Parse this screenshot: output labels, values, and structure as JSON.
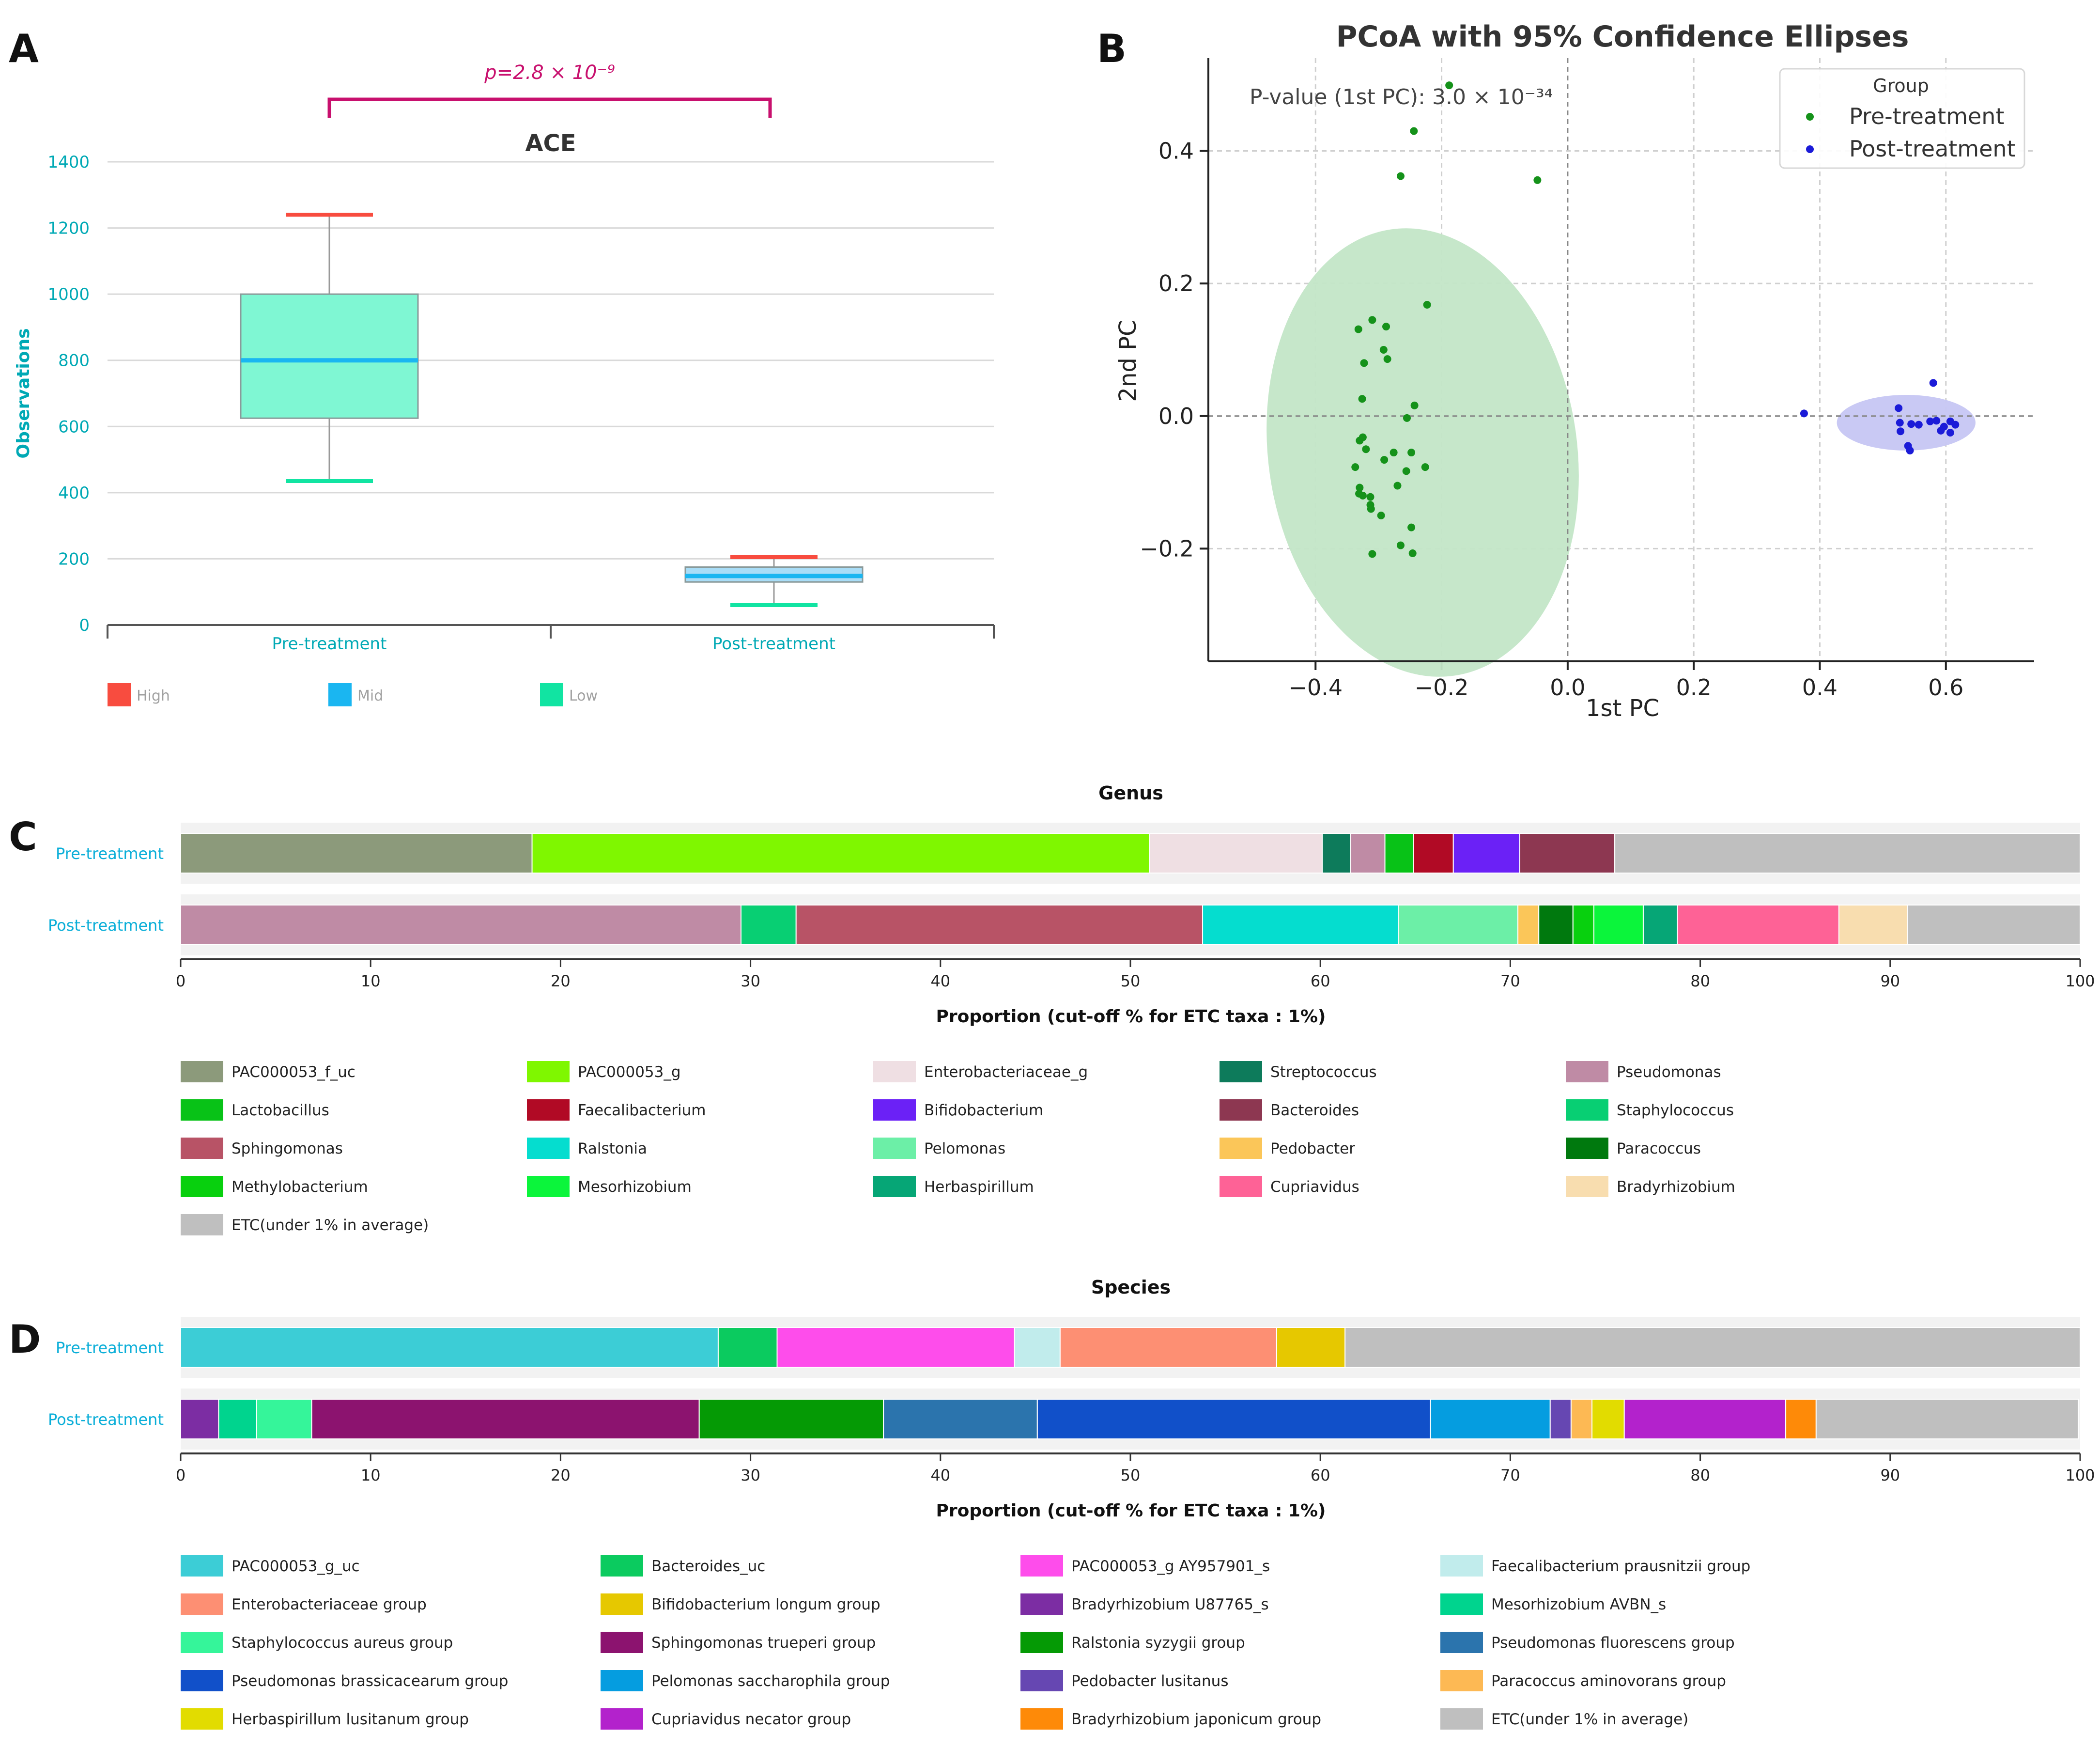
{
  "panel_labels": {
    "a": "A",
    "b": "B",
    "c": "C",
    "d": "D"
  },
  "chart_data": [
    {
      "id": "ace",
      "type": "box",
      "title": "ACE",
      "ylabel": "Observations",
      "ylim": [
        0,
        1400
      ],
      "yticks": [
        0,
        200,
        400,
        600,
        800,
        1000,
        1200,
        1400
      ],
      "categories": [
        "Pre-treatment",
        "Post-treatment"
      ],
      "boxes": [
        {
          "name": "Pre-treatment",
          "low": 435,
          "q1": 625,
          "median": 800,
          "q3": 1000,
          "high": 1240
        },
        {
          "name": "Post-treatment",
          "low": 60,
          "q1": 130,
          "median": 148,
          "q3": 175,
          "high": 205
        }
      ],
      "pvalue_text": "p=2.8 × 10⁻⁹",
      "legend": [
        {
          "label": "High",
          "color": "#f84c3f"
        },
        {
          "label": "Mid",
          "color": "#1ab6f1"
        },
        {
          "label": "Low",
          "color": "#11e4a2"
        }
      ],
      "colors": {
        "box_fill_pre": "#7ff7d3",
        "box_fill_post": "#a9ddf7",
        "axis_text": "#00a9b5",
        "bracket": "#c8106e"
      }
    },
    {
      "id": "pcoa",
      "type": "scatter",
      "title": "PCoA with 95% Confidence Ellipses",
      "xlabel": "1st PC",
      "ylabel": "2nd PC",
      "xlim": [
        -0.57,
        0.74
      ],
      "ylim": [
        -0.37,
        0.54
      ],
      "xticks": [
        -0.4,
        -0.2,
        0.0,
        0.2,
        0.4,
        0.6
      ],
      "xtick_labels": [
        "−0.4",
        "−0.2",
        "0.0",
        "0.2",
        "0.4",
        "0.6"
      ],
      "yticks": [
        -0.2,
        0.0,
        0.2,
        0.4
      ],
      "ytick_labels": [
        "−0.2",
        "0.0",
        "0.2",
        "0.4"
      ],
      "annotation": "P-value (1st PC): 3.0 × 10⁻³⁴",
      "legend_title": "Group",
      "series": [
        {
          "name": "Pre-treatment",
          "color": "#15921a",
          "ellipse_color": "#c3e6c7",
          "ellipse": {
            "cx": -0.23,
            "cy": -0.055,
            "rx": 0.245,
            "ry": 0.34,
            "angle_deg": 8
          },
          "points": [
            [
              -0.188,
              0.499
            ],
            [
              -0.244,
              0.43
            ],
            [
              -0.265,
              0.362
            ],
            [
              -0.048,
              0.356
            ],
            [
              -0.223,
              0.168
            ],
            [
              -0.31,
              0.145
            ],
            [
              -0.332,
              0.131
            ],
            [
              -0.288,
              0.135
            ],
            [
              -0.292,
              0.1
            ],
            [
              -0.286,
              0.086
            ],
            [
              -0.323,
              0.08
            ],
            [
              -0.326,
              0.026
            ],
            [
              -0.243,
              0.016
            ],
            [
              -0.255,
              -0.003
            ],
            [
              -0.325,
              -0.032
            ],
            [
              -0.33,
              -0.037
            ],
            [
              -0.32,
              -0.05
            ],
            [
              -0.276,
              -0.055
            ],
            [
              -0.248,
              -0.055
            ],
            [
              -0.291,
              -0.066
            ],
            [
              -0.337,
              -0.077
            ],
            [
              -0.226,
              -0.077
            ],
            [
              -0.256,
              -0.083
            ],
            [
              -0.27,
              -0.105
            ],
            [
              -0.33,
              -0.108
            ],
            [
              -0.325,
              -0.12
            ],
            [
              -0.331,
              -0.117
            ],
            [
              -0.313,
              -0.122
            ],
            [
              -0.313,
              -0.134
            ],
            [
              -0.312,
              -0.14
            ],
            [
              -0.296,
              -0.15
            ],
            [
              -0.248,
              -0.168
            ],
            [
              -0.265,
              -0.195
            ],
            [
              -0.31,
              -0.208
            ],
            [
              -0.246,
              -0.207
            ]
          ]
        },
        {
          "name": "Post-treatment",
          "color": "#1b1bd8",
          "ellipse_color": "#c6c6f3",
          "ellipse": {
            "cx": 0.537,
            "cy": -0.01,
            "rx": 0.11,
            "ry": 0.042,
            "angle_deg": 0
          },
          "points": [
            [
              0.375,
              0.004
            ],
            [
              0.58,
              0.05
            ],
            [
              0.525,
              0.012
            ],
            [
              0.545,
              -0.012
            ],
            [
              0.557,
              -0.013
            ],
            [
              0.575,
              -0.008
            ],
            [
              0.585,
              -0.007
            ],
            [
              0.597,
              -0.016
            ],
            [
              0.607,
              -0.008
            ],
            [
              0.615,
              -0.013
            ],
            [
              0.607,
              -0.025
            ],
            [
              0.592,
              -0.022
            ],
            [
              0.527,
              -0.01
            ],
            [
              0.528,
              -0.023
            ],
            [
              0.54,
              -0.045
            ],
            [
              0.543,
              -0.052
            ]
          ]
        }
      ]
    },
    {
      "id": "genus",
      "type": "stacked_bar_horizontal",
      "title": "Genus",
      "xlabel": "Proportion (cut-off % for ETC taxa : 1%)",
      "xlim": [
        0,
        100
      ],
      "xticks": [
        0,
        10,
        20,
        30,
        40,
        50,
        60,
        70,
        80,
        90,
        100
      ],
      "categories": [
        "Pre-treatment",
        "Post-treatment"
      ],
      "series": [
        {
          "name": "PAC000053_f_uc",
          "color": "#8c9a7b",
          "values": [
            18.5,
            0
          ]
        },
        {
          "name": "PAC000053_g",
          "color": "#7ff700",
          "values": [
            32.5,
            0
          ]
        },
        {
          "name": "Enterobacteriaceae_g",
          "color": "#efdfe3",
          "values": [
            9.1,
            0
          ]
        },
        {
          "name": "Streptococcus",
          "color": "#0d7b5b",
          "values": [
            1.5,
            0
          ]
        },
        {
          "name": "Pseudomonas",
          "color": "#bf8ba5",
          "values": [
            1.8,
            0
          ]
        },
        {
          "name": "Lactobacillus",
          "color": "#08c217",
          "values": [
            1.5,
            0
          ]
        },
        {
          "name": "Faecalibacterium",
          "color": "#b10a25",
          "values": [
            2.1,
            0
          ]
        },
        {
          "name": "Bifidobacterium",
          "color": "#6b21f6",
          "values": [
            3.5,
            0
          ]
        },
        {
          "name": "Bacteroides",
          "color": "#8d3751",
          "values": [
            5.0,
            0
          ]
        },
        {
          "name": "ETC(under 1% in average)",
          "color": "#bfbfbf",
          "values": [
            24.5,
            0
          ]
        }
      ],
      "series_post": [
        {
          "name": "Pseudomonas",
          "color": "#bf8ba5",
          "value": 29.5
        },
        {
          "name": "Staphylococcus",
          "color": "#08cf73",
          "value": 2.9
        },
        {
          "name": "Sphingomonas",
          "color": "#b85366",
          "value": 21.4
        },
        {
          "name": "Ralstonia",
          "color": "#05ddcf",
          "value": 10.3
        },
        {
          "name": "Pelomonas",
          "color": "#6cefa7",
          "value": 6.3
        },
        {
          "name": "Pedobacter",
          "color": "#fbc659",
          "value": 1.1
        },
        {
          "name": "Paracoccus",
          "color": "#00790e",
          "value": 1.8
        },
        {
          "name": "Methylobacterium",
          "color": "#08d00e",
          "value": 1.1
        },
        {
          "name": "Mesorhizobium",
          "color": "#0bf53b",
          "value": 2.6
        },
        {
          "name": "Herbaspirillum",
          "color": "#06a676",
          "value": 1.8
        },
        {
          "name": "Cupriavidus",
          "color": "#fe6296",
          "value": 8.5
        },
        {
          "name": "Bradyrhizobium",
          "color": "#f8ddaf",
          "value": 3.6
        },
        {
          "name": "ETC(under 1% in average)",
          "color": "#bfbfbf",
          "value": 9.1
        }
      ],
      "legend": [
        {
          "label": "PAC000053_f_uc",
          "color": "#8c9a7b"
        },
        {
          "label": "PAC000053_g",
          "color": "#7ff700"
        },
        {
          "label": "Enterobacteriaceae_g",
          "color": "#efdfe3"
        },
        {
          "label": "Streptococcus",
          "color": "#0d7b5b"
        },
        {
          "label": "Pseudomonas",
          "color": "#bf8ba5"
        },
        {
          "label": "Lactobacillus",
          "color": "#08c217"
        },
        {
          "label": "Faecalibacterium",
          "color": "#b10a25"
        },
        {
          "label": "Bifidobacterium",
          "color": "#6b21f6"
        },
        {
          "label": "Bacteroides",
          "color": "#8d3751"
        },
        {
          "label": "Staphylococcus",
          "color": "#08cf73"
        },
        {
          "label": "Sphingomonas",
          "color": "#b85366"
        },
        {
          "label": "Ralstonia",
          "color": "#05ddcf"
        },
        {
          "label": "Pelomonas",
          "color": "#6cefa7"
        },
        {
          "label": "Pedobacter",
          "color": "#fbc659"
        },
        {
          "label": "Paracoccus",
          "color": "#00790e"
        },
        {
          "label": "Methylobacterium",
          "color": "#08d00e"
        },
        {
          "label": "Mesorhizobium",
          "color": "#0bf53b"
        },
        {
          "label": "Herbaspirillum",
          "color": "#06a676"
        },
        {
          "label": "Cupriavidus",
          "color": "#fe6296"
        },
        {
          "label": "Bradyrhizobium",
          "color": "#f8ddaf"
        },
        {
          "label": "ETC(under 1% in average)",
          "color": "#bfbfbf"
        }
      ]
    },
    {
      "id": "species",
      "type": "stacked_bar_horizontal",
      "title": "Species",
      "xlabel": "Proportion (cut-off % for ETC taxa : 1%)",
      "xlim": [
        0,
        100
      ],
      "xticks": [
        0,
        10,
        20,
        30,
        40,
        50,
        60,
        70,
        80,
        90,
        100
      ],
      "categories": [
        "Pre-treatment",
        "Post-treatment"
      ],
      "series_pre": [
        {
          "name": "PAC000053_g_uc",
          "color": "#3ccdd6",
          "value": 28.3
        },
        {
          "name": "Bacteroides_uc",
          "color": "#0bcb5f",
          "value": 3.1
        },
        {
          "name": "PAC000053_g AY957901_s",
          "color": "#fe4deb",
          "value": 12.5
        },
        {
          "name": "Faecalibacterium prausnitzii group",
          "color": "#c1ecec",
          "value": 2.4
        },
        {
          "name": "Enterobacteriaceae group",
          "color": "#fd8f73",
          "value": 11.4
        },
        {
          "name": "Bifidobacterium longum group",
          "color": "#e6c800",
          "value": 3.6
        },
        {
          "name": "ETC(under 1% in average)",
          "color": "#bfbfbf",
          "value": 38.7
        }
      ],
      "series_post": [
        {
          "name": "Bradyrhizobium U87765_s",
          "color": "#7c2da3",
          "value": 2.0
        },
        {
          "name": "Mesorhizobium AVBN_s",
          "color": "#00d48e",
          "value": 2.0
        },
        {
          "name": "Staphylococcus aureus group",
          "color": "#35f59a",
          "value": 2.9
        },
        {
          "name": "Sphingomonas trueperi group",
          "color": "#8c136f",
          "value": 20.4
        },
        {
          "name": "Ralstonia syzygii group",
          "color": "#059a05",
          "value": 9.7
        },
        {
          "name": "Pseudomonas fluorescens group",
          "color": "#2b74ad",
          "value": 8.1
        },
        {
          "name": "Pseudomonas brassicacearum group",
          "color": "#1150c9",
          "value": 20.7
        },
        {
          "name": "Pelomonas saccharophila group",
          "color": "#059de0",
          "value": 6.3
        },
        {
          "name": "Pedobacter lusitanus",
          "color": "#6647b2",
          "value": 1.1
        },
        {
          "name": "Paracoccus aminovorans group",
          "color": "#fdb954",
          "value": 1.1
        },
        {
          "name": "Herbaspirillum lusitanum group",
          "color": "#e2dc00",
          "value": 1.7
        },
        {
          "name": "Cupriavidus necator group",
          "color": "#b322cc",
          "value": 8.5
        },
        {
          "name": "Bradyrhizobium japonicum group",
          "color": "#fe8a08",
          "value": 1.6
        },
        {
          "name": "ETC(under 1% in average)",
          "color": "#bfbfbf",
          "value": 13.8
        }
      ],
      "legend": [
        {
          "label": "PAC000053_g_uc",
          "color": "#3ccdd6"
        },
        {
          "label": "Bacteroides_uc",
          "color": "#0bcb5f"
        },
        {
          "label": "PAC000053_g AY957901_s",
          "color": "#fe4deb"
        },
        {
          "label": "Faecalibacterium prausnitzii group",
          "color": "#c1ecec"
        },
        {
          "label": "Enterobacteriaceae group",
          "color": "#fd8f73"
        },
        {
          "label": "Bifidobacterium longum group",
          "color": "#e6c800"
        },
        {
          "label": "Bradyrhizobium U87765_s",
          "color": "#7c2da3"
        },
        {
          "label": "Mesorhizobium AVBN_s",
          "color": "#00d48e"
        },
        {
          "label": "Staphylococcus aureus group",
          "color": "#35f59a"
        },
        {
          "label": "Sphingomonas trueperi group",
          "color": "#8c136f"
        },
        {
          "label": "Ralstonia syzygii group",
          "color": "#059a05"
        },
        {
          "label": "Pseudomonas fluorescens group",
          "color": "#2b74ad"
        },
        {
          "label": "Pseudomonas brassicacearum group",
          "color": "#1150c9"
        },
        {
          "label": "Pelomonas saccharophila group",
          "color": "#059de0"
        },
        {
          "label": "Pedobacter lusitanus",
          "color": "#6647b2"
        },
        {
          "label": "Paracoccus aminovorans group",
          "color": "#fdb954"
        },
        {
          "label": "Herbaspirillum lusitanum group",
          "color": "#e2dc00"
        },
        {
          "label": "Cupriavidus necator group",
          "color": "#b322cc"
        },
        {
          "label": "Bradyrhizobium japonicum group",
          "color": "#fe8a08"
        },
        {
          "label": "ETC(under 1% in average)",
          "color": "#bfbfbf"
        }
      ]
    }
  ]
}
